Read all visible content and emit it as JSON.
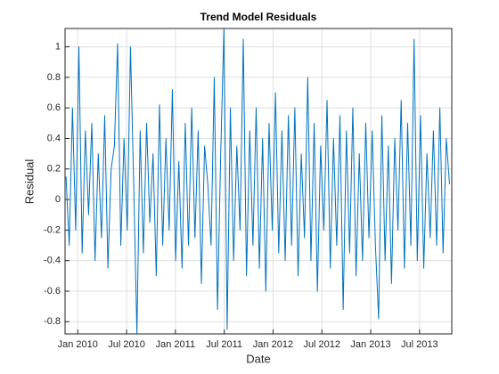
{
  "chart_data": {
    "type": "line",
    "title": "Trend Model Residuals",
    "xlabel": "Date",
    "ylabel": "Residual",
    "xlim": [
      2009.87,
      2013.83
    ],
    "ylim": [
      -0.88,
      1.12
    ],
    "xticks": [
      {
        "value": 2010,
        "label": "Jan 2010"
      },
      {
        "value": 2010.5,
        "label": "Jul 2010"
      },
      {
        "value": 2011,
        "label": "Jan 2011"
      },
      {
        "value": 2011.5,
        "label": "Jul 2011"
      },
      {
        "value": 2012,
        "label": "Jan 2012"
      },
      {
        "value": 2012.5,
        "label": "Jul 2012"
      },
      {
        "value": 2013,
        "label": "Jan 2013"
      },
      {
        "value": 2013.5,
        "label": "Jul 2013"
      }
    ],
    "yticks": [
      -0.8,
      -0.6,
      -0.4,
      -0.2,
      0,
      0.2,
      0.4,
      0.6,
      0.8,
      1
    ],
    "grid": true,
    "x": [
      2009.88,
      2009.913,
      2009.946,
      2009.979,
      2010.012,
      2010.045,
      2010.078,
      2010.111,
      2010.144,
      2010.177,
      2010.21,
      2010.243,
      2010.276,
      2010.309,
      2010.342,
      2010.375,
      2010.408,
      2010.441,
      2010.474,
      2010.507,
      2010.54,
      2010.573,
      2010.606,
      2010.639,
      2010.672,
      2010.705,
      2010.738,
      2010.771,
      2010.804,
      2010.837,
      2010.87,
      2010.903,
      2010.936,
      2010.969,
      2011.002,
      2011.035,
      2011.068,
      2011.101,
      2011.134,
      2011.167,
      2011.2,
      2011.233,
      2011.266,
      2011.299,
      2011.332,
      2011.365,
      2011.398,
      2011.431,
      2011.464,
      2011.497,
      2011.53,
      2011.563,
      2011.596,
      2011.629,
      2011.662,
      2011.695,
      2011.728,
      2011.761,
      2011.794,
      2011.827,
      2011.86,
      2011.893,
      2011.926,
      2011.959,
      2011.992,
      2012.025,
      2012.058,
      2012.091,
      2012.124,
      2012.157,
      2012.19,
      2012.223,
      2012.256,
      2012.289,
      2012.322,
      2012.355,
      2012.388,
      2012.421,
      2012.454,
      2012.487,
      2012.52,
      2012.553,
      2012.586,
      2012.619,
      2012.652,
      2012.685,
      2012.718,
      2012.751,
      2012.784,
      2012.817,
      2012.85,
      2012.883,
      2012.916,
      2012.949,
      2012.982,
      2013.015,
      2013.048,
      2013.081,
      2013.114,
      2013.147,
      2013.18,
      2013.213,
      2013.246,
      2013.279,
      2013.312,
      2013.345,
      2013.378,
      2013.411,
      2013.444,
      2013.477,
      2013.51,
      2013.543,
      2013.576,
      2013.609,
      2013.642,
      2013.675,
      2013.708,
      2013.741,
      2013.774,
      2013.807
    ],
    "series": [
      {
        "color": "#0072bd",
        "values": [
          0.15,
          -0.3,
          0.6,
          -0.2,
          1.0,
          -0.35,
          0.45,
          -0.1,
          0.5,
          -0.4,
          0.3,
          -0.25,
          0.55,
          -0.45,
          0.2,
          0.35,
          1.02,
          -0.3,
          0.4,
          -0.2,
          1.0,
          0.1,
          -0.88,
          0.45,
          -0.35,
          0.5,
          -0.15,
          0.3,
          -0.5,
          0.62,
          -0.3,
          0.4,
          -0.2,
          0.72,
          -0.4,
          0.25,
          -0.45,
          0.5,
          -0.3,
          0.6,
          -0.25,
          0.45,
          -0.55,
          0.35,
          0.1,
          -0.3,
          0.8,
          -0.72,
          0.3,
          1.12,
          -0.85,
          0.6,
          -0.4,
          0.35,
          -0.2,
          1.05,
          -0.5,
          0.45,
          -0.3,
          0.6,
          -0.45,
          0.4,
          -0.6,
          0.5,
          -0.2,
          0.7,
          -0.35,
          0.45,
          -0.4,
          0.55,
          -0.3,
          0.6,
          -0.5,
          0.3,
          -0.25,
          0.8,
          -0.4,
          0.5,
          -0.6,
          0.35,
          -0.2,
          0.65,
          -0.45,
          0.4,
          -0.3,
          0.55,
          -0.72,
          0.45,
          -0.35,
          0.6,
          -0.5,
          0.3,
          -0.4,
          0.5,
          -0.25,
          0.45,
          -0.3,
          -0.78,
          0.55,
          -0.4,
          0.35,
          -0.55,
          0.4,
          -0.2,
          0.65,
          -0.45,
          0.5,
          -0.3,
          1.05,
          -0.4,
          0.55,
          -0.45,
          0.3,
          -0.25,
          0.45,
          -0.3,
          0.6,
          -0.35,
          0.4,
          0.1
        ]
      }
    ]
  }
}
